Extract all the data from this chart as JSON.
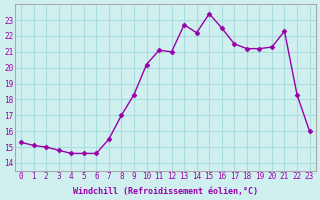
{
  "x": [
    0,
    1,
    2,
    3,
    4,
    5,
    6,
    7,
    8,
    9,
    10,
    11,
    12,
    13,
    14,
    15,
    16,
    17,
    18,
    19,
    20,
    21,
    22,
    23
  ],
  "y": [
    15.3,
    15.1,
    15.0,
    14.8,
    14.6,
    14.6,
    14.6,
    15.5,
    17.0,
    18.3,
    20.2,
    21.1,
    21.0,
    22.7,
    22.2,
    23.4,
    22.5,
    21.5,
    21.2,
    21.2,
    21.3,
    22.3,
    18.3,
    16.0
  ],
  "line_color": "#9900aa",
  "marker_color": "#9900aa",
  "bg_color": "#d0f0f0",
  "grid_color": "#aadddd",
  "ylabel_ticks": [
    14,
    15,
    16,
    17,
    18,
    19,
    20,
    21,
    22,
    23
  ],
  "xlabel": "Windchill (Refroidissement éolien,°C)",
  "ylim": [
    13.5,
    24.0
  ],
  "xlim": [
    -0.5,
    23.5
  ]
}
